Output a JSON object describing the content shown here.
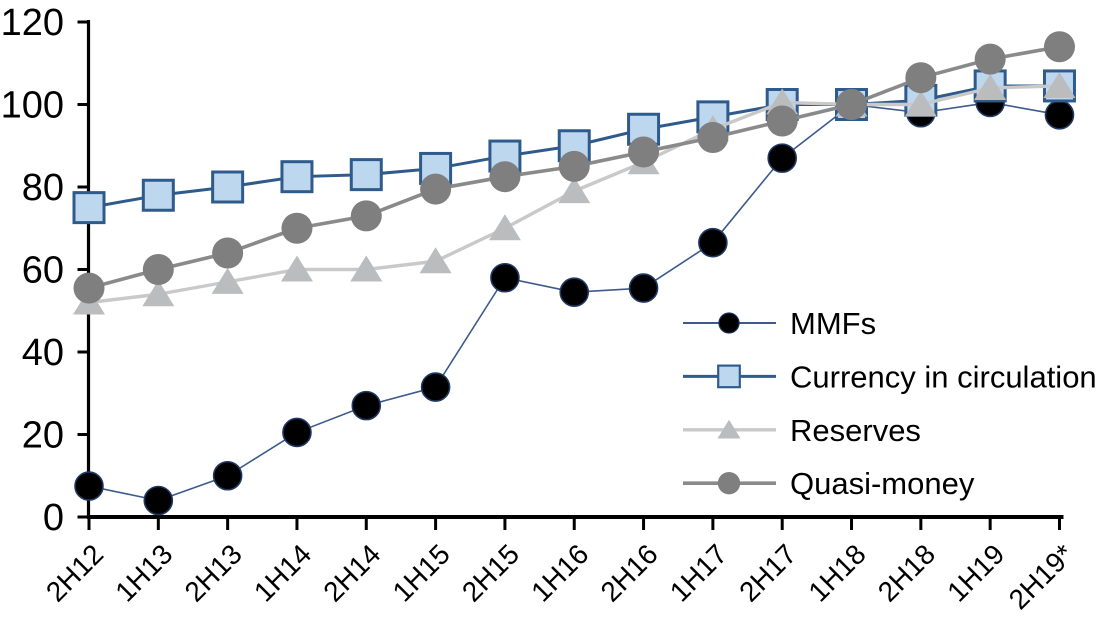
{
  "chart_data": {
    "type": "line",
    "title": "",
    "categories": [
      "2H12",
      "1H13",
      "2H13",
      "1H14",
      "2H14",
      "1H15",
      "2H15",
      "1H16",
      "2H16",
      "1H17",
      "2H17",
      "1H18",
      "2H18",
      "1H19",
      "2H19*"
    ],
    "series": [
      {
        "name": "MMFs",
        "marker": "circle",
        "marker_fill": "#000000",
        "marker_stroke": "#1F3864",
        "line_color": "#3C5A8C",
        "line_width": 1.6,
        "values": [
          7.5,
          4,
          10,
          20.5,
          27,
          31.5,
          58,
          54.5,
          55.5,
          66.5,
          87,
          100,
          98,
          100.5,
          97.5
        ]
      },
      {
        "name": "Currency in circulation",
        "marker": "square",
        "marker_fill": "#BDD7EE",
        "marker_stroke": "#2F5B8C",
        "line_color": "#2F5B8C",
        "line_width": 3.0,
        "values": [
          75,
          78,
          80,
          82.5,
          83,
          84.5,
          87.5,
          90,
          94,
          97,
          100,
          100,
          101,
          104.5,
          104.5
        ]
      },
      {
        "name": "Reserves",
        "marker": "triangle",
        "marker_fill": "#BABCBE",
        "marker_stroke": "none",
        "line_color": "#C9C9C9",
        "line_width": 3.4,
        "values": [
          52,
          54,
          57,
          60,
          60,
          62,
          70,
          79,
          86,
          94,
          100.5,
          100,
          100,
          104,
          104.5
        ]
      },
      {
        "name": "Quasi-money",
        "marker": "circle",
        "marker_fill": "#7F7F7F",
        "marker_stroke": "none",
        "line_color": "#8A8A8A",
        "line_width": 3.6,
        "values": [
          55.5,
          60,
          64,
          70,
          73,
          79.5,
          82.5,
          85,
          88.5,
          92,
          96,
          100,
          106.5,
          111,
          114
        ]
      }
    ],
    "y_axis": {
      "min": 0,
      "max": 120,
      "step": 20,
      "tick_labels": [
        "0",
        "20",
        "40",
        "60",
        "80",
        "100",
        "120"
      ]
    },
    "x_axis": {
      "tick_labels": [
        "2H12",
        "1H13",
        "2H13",
        "1H14",
        "2H14",
        "1H15",
        "2H15",
        "1H16",
        "2H16",
        "1H17",
        "2H17",
        "1H18",
        "2H18",
        "1H19",
        "2H19*"
      ],
      "label_rotation_deg": -45
    },
    "legend": {
      "position": "inside-right",
      "items": [
        "MMFs",
        "Currency in circulation",
        "Reserves",
        "Quasi-money"
      ]
    },
    "axis_color": "#000000",
    "background": "#FFFFFF",
    "grid": "off"
  }
}
